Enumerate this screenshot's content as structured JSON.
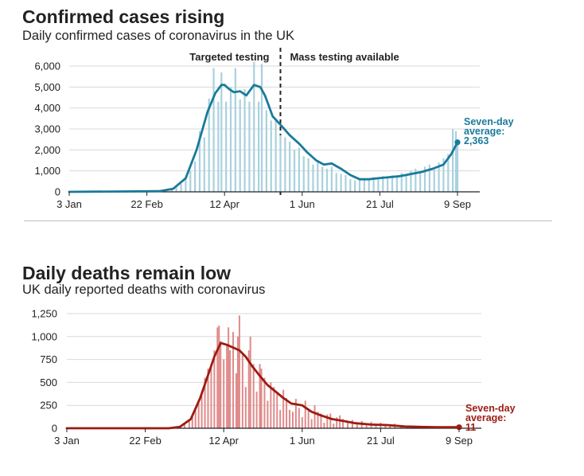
{
  "charts": {
    "cases": {
      "title": "Confirmed cases rising",
      "subtitle": "Daily confirmed cases of coronavirus in the UK"
    },
    "deaths": {
      "title": "Daily deaths remain low",
      "subtitle": "UK daily reported deaths with coronavirus"
    }
  },
  "chart_data": [
    {
      "type": "bar",
      "title": "Confirmed cases rising",
      "subtitle": "Daily confirmed cases of coronavirus in the UK",
      "xlabel": "",
      "ylabel": "",
      "x_range": [
        "2020-01-03",
        "2020-09-09"
      ],
      "ylim": [
        0,
        6000
      ],
      "yticks": [
        0,
        1000,
        2000,
        3000,
        4000,
        5000,
        6000
      ],
      "ytick_labels": [
        "0",
        "1,000",
        "2,000",
        "3,000",
        "4,000",
        "5,000",
        "6,000"
      ],
      "xtick_dates": [
        "2020-01-03",
        "2020-02-22",
        "2020-04-12",
        "2020-06-01",
        "2020-07-21",
        "2020-09-09"
      ],
      "xtick_labels": [
        "3 Jan",
        "22 Feb",
        "12 Apr",
        "1 Jun",
        "21 Jul",
        "9 Sep"
      ],
      "grid": true,
      "bar_color": "#a9d1de",
      "line_color": "#1a7a9a",
      "divider_date": "2020-05-18",
      "annotations": [
        "Targeted testing",
        "Mass testing available"
      ],
      "end_label": [
        "Seven-day",
        "average:",
        "2,363"
      ],
      "series": [
        {
          "name": "Daily confirmed cases",
          "kind": "bars",
          "points": [
            [
              "2020-03-01",
              30
            ],
            [
              "2020-03-05",
              80
            ],
            [
              "2020-03-09",
              150
            ],
            [
              "2020-03-12",
              200
            ],
            [
              "2020-03-15",
              380
            ],
            [
              "2020-03-18",
              650
            ],
            [
              "2020-03-21",
              1000
            ],
            [
              "2020-03-24",
              1450
            ],
            [
              "2020-03-27",
              2900
            ],
            [
              "2020-03-30",
              2600
            ],
            [
              "2020-04-02",
              4450
            ],
            [
              "2020-04-05",
              5900
            ],
            [
              "2020-04-08",
              4300
            ],
            [
              "2020-04-10",
              5700
            ],
            [
              "2020-04-13",
              4300
            ],
            [
              "2020-04-16",
              5000
            ],
            [
              "2020-04-19",
              5900
            ],
            [
              "2020-04-22",
              4400
            ],
            [
              "2020-04-25",
              4900
            ],
            [
              "2020-04-28",
              4300
            ],
            [
              "2020-05-01",
              6200
            ],
            [
              "2020-05-04",
              4300
            ],
            [
              "2020-05-06",
              6100
            ],
            [
              "2020-05-09",
              3900
            ],
            [
              "2020-05-12",
              3400
            ],
            [
              "2020-05-15",
              3500
            ],
            [
              "2020-05-18",
              2700
            ],
            [
              "2020-05-21",
              2600
            ],
            [
              "2020-05-24",
              2400
            ],
            [
              "2020-05-27",
              2000
            ],
            [
              "2020-05-30",
              2100
            ],
            [
              "2020-06-02",
              1700
            ],
            [
              "2020-06-05",
              1600
            ],
            [
              "2020-06-08",
              1300
            ],
            [
              "2020-06-11",
              1500
            ],
            [
              "2020-06-14",
              1200
            ],
            [
              "2020-06-17",
              1100
            ],
            [
              "2020-06-20",
              1200
            ],
            [
              "2020-06-23",
              900
            ],
            [
              "2020-06-26",
              850
            ],
            [
              "2020-06-29",
              800
            ],
            [
              "2020-07-02",
              600
            ],
            [
              "2020-07-05",
              550
            ],
            [
              "2020-07-08",
              600
            ],
            [
              "2020-07-11",
              650
            ],
            [
              "2020-07-14",
              550
            ],
            [
              "2020-07-17",
              700
            ],
            [
              "2020-07-20",
              600
            ],
            [
              "2020-07-23",
              750
            ],
            [
              "2020-07-26",
              700
            ],
            [
              "2020-07-29",
              800
            ],
            [
              "2020-08-01",
              750
            ],
            [
              "2020-08-04",
              900
            ],
            [
              "2020-08-07",
              800
            ],
            [
              "2020-08-10",
              1000
            ],
            [
              "2020-08-13",
              1100
            ],
            [
              "2020-08-16",
              1000
            ],
            [
              "2020-08-19",
              1200
            ],
            [
              "2020-08-22",
              1300
            ],
            [
              "2020-08-25",
              1100
            ],
            [
              "2020-08-28",
              1400
            ],
            [
              "2020-08-31",
              1600
            ],
            [
              "2020-09-03",
              1800
            ],
            [
              "2020-09-06",
              3000
            ],
            [
              "2020-09-08",
              2900
            ],
            [
              "2020-09-09",
              2400
            ]
          ]
        },
        {
          "name": "Seven-day average",
          "kind": "line",
          "points": [
            [
              "2020-01-03",
              0
            ],
            [
              "2020-03-01",
              30
            ],
            [
              "2020-03-10",
              150
            ],
            [
              "2020-03-18",
              650
            ],
            [
              "2020-03-25",
              2000
            ],
            [
              "2020-04-01",
              3800
            ],
            [
              "2020-04-06",
              4700
            ],
            [
              "2020-04-10",
              5100
            ],
            [
              "2020-04-12",
              5100
            ],
            [
              "2020-04-15",
              4900
            ],
            [
              "2020-04-18",
              4750
            ],
            [
              "2020-04-22",
              4800
            ],
            [
              "2020-04-26",
              4600
            ],
            [
              "2020-05-01",
              5100
            ],
            [
              "2020-05-05",
              5000
            ],
            [
              "2020-05-08",
              4600
            ],
            [
              "2020-05-13",
              3600
            ],
            [
              "2020-05-18",
              3200
            ],
            [
              "2020-05-24",
              2700
            ],
            [
              "2020-05-30",
              2300
            ],
            [
              "2020-06-04",
              1900
            ],
            [
              "2020-06-10",
              1500
            ],
            [
              "2020-06-15",
              1300
            ],
            [
              "2020-06-20",
              1350
            ],
            [
              "2020-06-26",
              1100
            ],
            [
              "2020-07-02",
              800
            ],
            [
              "2020-07-08",
              600
            ],
            [
              "2020-07-14",
              600
            ],
            [
              "2020-07-20",
              650
            ],
            [
              "2020-07-27",
              700
            ],
            [
              "2020-08-03",
              750
            ],
            [
              "2020-08-10",
              850
            ],
            [
              "2020-08-17",
              950
            ],
            [
              "2020-08-24",
              1100
            ],
            [
              "2020-08-31",
              1300
            ],
            [
              "2020-09-05",
              1800
            ],
            [
              "2020-09-09",
              2363
            ]
          ]
        }
      ]
    },
    {
      "type": "bar",
      "title": "Daily deaths remain low",
      "subtitle": "UK daily reported deaths with coronavirus",
      "xlabel": "",
      "ylabel": "",
      "x_range": [
        "2020-01-03",
        "2020-09-09"
      ],
      "ylim": [
        0,
        1250
      ],
      "yticks": [
        0,
        250,
        500,
        750,
        1000,
        1250
      ],
      "ytick_labels": [
        "0",
        "250",
        "500",
        "750",
        "1,000",
        "1,250"
      ],
      "xtick_dates": [
        "2020-01-03",
        "2020-02-22",
        "2020-04-12",
        "2020-06-01",
        "2020-07-21",
        "2020-09-09"
      ],
      "xtick_labels": [
        "3 Jan",
        "22 Feb",
        "12 Apr",
        "1 Jun",
        "21 Jul",
        "9 Sep"
      ],
      "grid": true,
      "bar_color": "#e08a8a",
      "line_color": "#9b1c12",
      "end_label": [
        "Seven-day",
        "average:",
        "11"
      ],
      "series": [
        {
          "name": "Daily reported deaths",
          "kind": "bars",
          "points": [
            [
              "2020-03-08",
              3
            ],
            [
              "2020-03-12",
              10
            ],
            [
              "2020-03-15",
              20
            ],
            [
              "2020-03-18",
              45
            ],
            [
              "2020-03-21",
              80
            ],
            [
              "2020-03-23",
              130
            ],
            [
              "2020-03-25",
              200
            ],
            [
              "2020-03-27",
              300
            ],
            [
              "2020-03-29",
              360
            ],
            [
              "2020-03-31",
              550
            ],
            [
              "2020-04-02",
              650
            ],
            [
              "2020-04-04",
              700
            ],
            [
              "2020-04-06",
              850
            ],
            [
              "2020-04-08",
              1100
            ],
            [
              "2020-04-09",
              1120
            ],
            [
              "2020-04-10",
              950
            ],
            [
              "2020-04-12",
              750
            ],
            [
              "2020-04-14",
              900
            ],
            [
              "2020-04-15",
              1100
            ],
            [
              "2020-04-16",
              850
            ],
            [
              "2020-04-18",
              1050
            ],
            [
              "2020-04-20",
              600
            ],
            [
              "2020-04-21",
              1000
            ],
            [
              "2020-04-22",
              1230
            ],
            [
              "2020-04-24",
              800
            ],
            [
              "2020-04-26",
              450
            ],
            [
              "2020-04-28",
              850
            ],
            [
              "2020-04-29",
              1000
            ],
            [
              "2020-05-01",
              700
            ],
            [
              "2020-05-03",
              400
            ],
            [
              "2020-05-05",
              700
            ],
            [
              "2020-05-06",
              650
            ],
            [
              "2020-05-08",
              550
            ],
            [
              "2020-05-10",
              300
            ],
            [
              "2020-05-12",
              500
            ],
            [
              "2020-05-14",
              450
            ],
            [
              "2020-05-16",
              380
            ],
            [
              "2020-05-18",
              200
            ],
            [
              "2020-05-20",
              420
            ],
            [
              "2020-05-22",
              330
            ],
            [
              "2020-05-24",
              200
            ],
            [
              "2020-05-26",
              180
            ],
            [
              "2020-05-28",
              320
            ],
            [
              "2020-05-30",
              220
            ],
            [
              "2020-06-01",
              120
            ],
            [
              "2020-06-03",
              300
            ],
            [
              "2020-06-05",
              200
            ],
            [
              "2020-06-07",
              100
            ],
            [
              "2020-06-09",
              250
            ],
            [
              "2020-06-11",
              180
            ],
            [
              "2020-06-13",
              160
            ],
            [
              "2020-06-15",
              60
            ],
            [
              "2020-06-17",
              150
            ],
            [
              "2020-06-19",
              160
            ],
            [
              "2020-06-21",
              50
            ],
            [
              "2020-06-23",
              120
            ],
            [
              "2020-06-25",
              140
            ],
            [
              "2020-06-27",
              100
            ],
            [
              "2020-06-30",
              60
            ],
            [
              "2020-07-03",
              90
            ],
            [
              "2020-07-06",
              40
            ],
            [
              "2020-07-09",
              80
            ],
            [
              "2020-07-12",
              30
            ],
            [
              "2020-07-15",
              70
            ],
            [
              "2020-07-18",
              40
            ],
            [
              "2020-07-21",
              60
            ],
            [
              "2020-07-24",
              40
            ],
            [
              "2020-07-27",
              30
            ],
            [
              "2020-07-30",
              50
            ],
            [
              "2020-08-03",
              25
            ],
            [
              "2020-08-07",
              30
            ],
            [
              "2020-08-11",
              20
            ],
            [
              "2020-08-15",
              15
            ],
            [
              "2020-08-19",
              20
            ],
            [
              "2020-08-23",
              10
            ],
            [
              "2020-08-27",
              15
            ],
            [
              "2020-08-31",
              10
            ],
            [
              "2020-09-04",
              12
            ],
            [
              "2020-09-08",
              8
            ]
          ]
        },
        {
          "name": "Seven-day average",
          "kind": "line",
          "points": [
            [
              "2020-01-03",
              0
            ],
            [
              "2020-03-08",
              0
            ],
            [
              "2020-03-15",
              15
            ],
            [
              "2020-03-22",
              100
            ],
            [
              "2020-03-28",
              330
            ],
            [
              "2020-04-02",
              580
            ],
            [
              "2020-04-06",
              780
            ],
            [
              "2020-04-10",
              930
            ],
            [
              "2020-04-14",
              910
            ],
            [
              "2020-04-18",
              880
            ],
            [
              "2020-04-22",
              850
            ],
            [
              "2020-04-26",
              780
            ],
            [
              "2020-04-30",
              680
            ],
            [
              "2020-05-05",
              570
            ],
            [
              "2020-05-10",
              470
            ],
            [
              "2020-05-15",
              400
            ],
            [
              "2020-05-20",
              330
            ],
            [
              "2020-05-25",
              270
            ],
            [
              "2020-06-01",
              250
            ],
            [
              "2020-06-07",
              180
            ],
            [
              "2020-06-13",
              140
            ],
            [
              "2020-06-20",
              100
            ],
            [
              "2020-06-27",
              80
            ],
            [
              "2020-07-05",
              55
            ],
            [
              "2020-07-15",
              40
            ],
            [
              "2020-07-25",
              35
            ],
            [
              "2020-08-05",
              20
            ],
            [
              "2020-08-15",
              15
            ],
            [
              "2020-08-25",
              12
            ],
            [
              "2020-09-09",
              11
            ]
          ]
        }
      ]
    }
  ]
}
